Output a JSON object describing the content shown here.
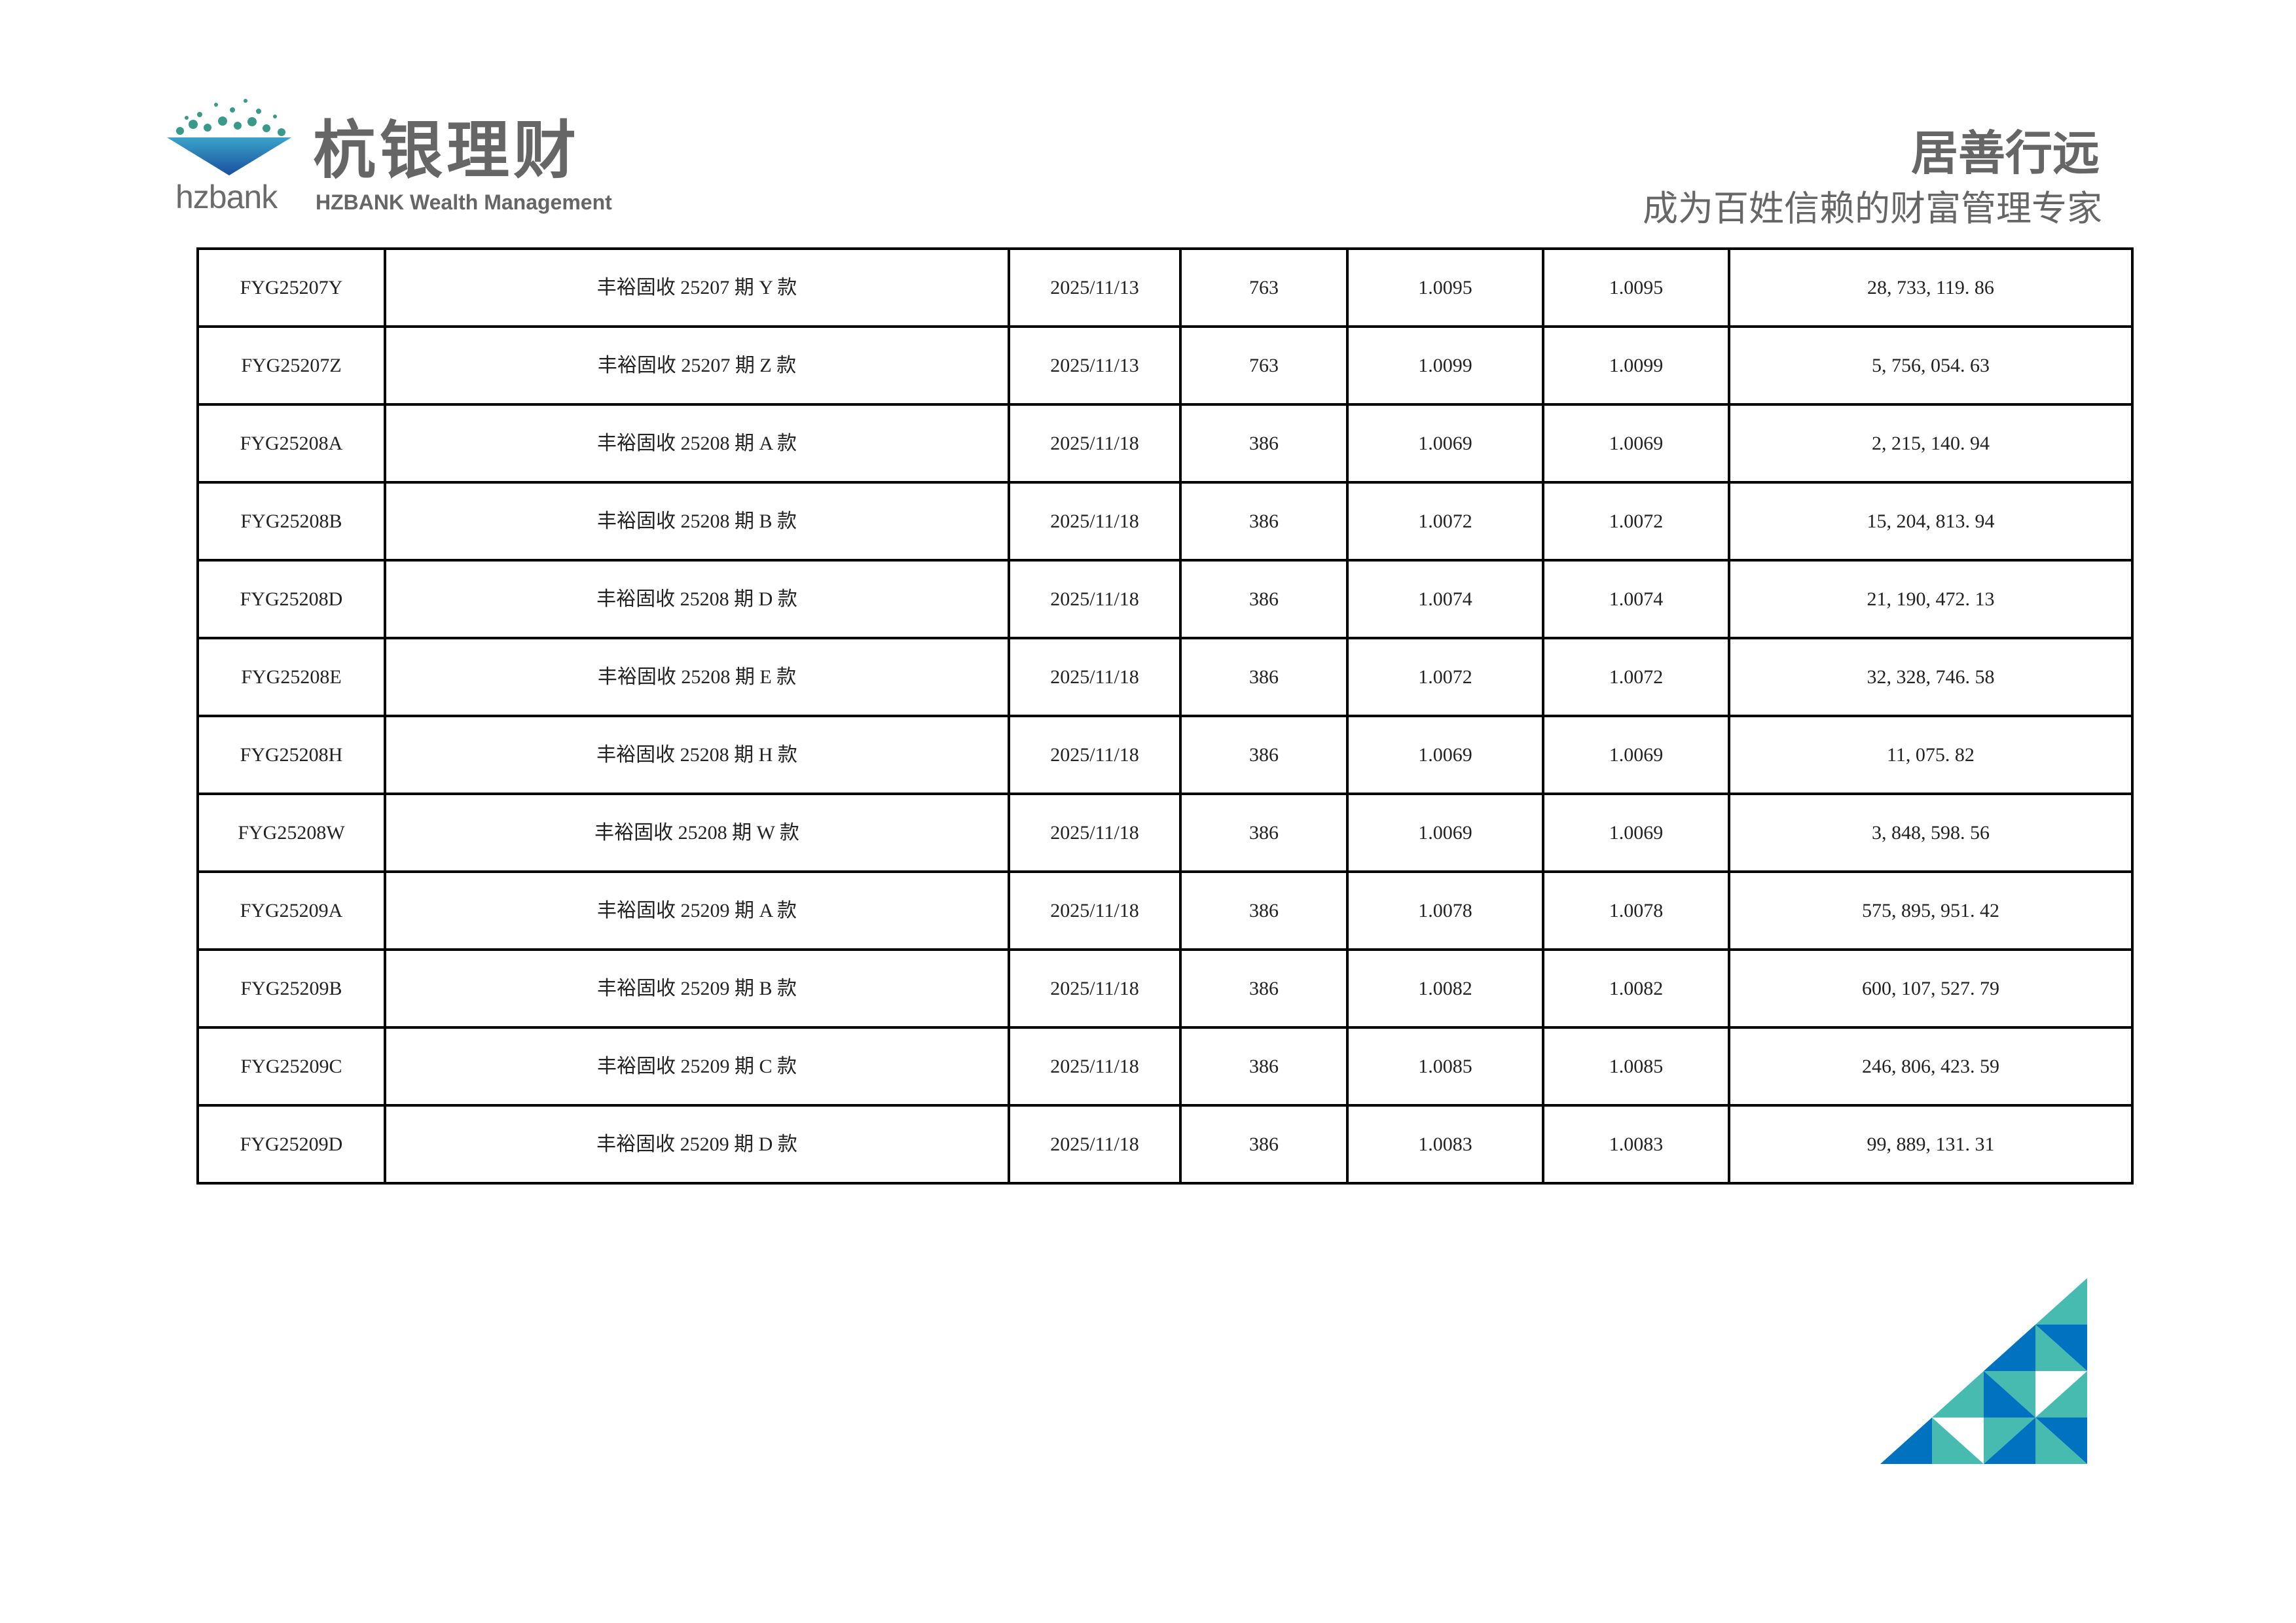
{
  "header": {
    "logo_small_text": "hzbank",
    "brand_cn": "杭银理财",
    "brand_en": "HZBANK Wealth Management",
    "slogan_main": "居善行远",
    "slogan_sub": "成为百姓信赖的财富管理专家"
  },
  "colors": {
    "teal": "#48bbb1",
    "blue": "#0072c0",
    "gray_text": "#666666"
  },
  "table": {
    "rows": [
      [
        "FYG25207Y",
        "丰裕固收 25207 期 Y 款",
        "2025/11/13",
        "763",
        "1.0095",
        "1.0095",
        "28, 733, 119. 86"
      ],
      [
        "FYG25207Z",
        "丰裕固收 25207 期 Z 款",
        "2025/11/13",
        "763",
        "1.0099",
        "1.0099",
        "5, 756, 054. 63"
      ],
      [
        "FYG25208A",
        "丰裕固收 25208 期 A 款",
        "2025/11/18",
        "386",
        "1.0069",
        "1.0069",
        "2, 215, 140. 94"
      ],
      [
        "FYG25208B",
        "丰裕固收 25208 期 B 款",
        "2025/11/18",
        "386",
        "1.0072",
        "1.0072",
        "15, 204, 813. 94"
      ],
      [
        "FYG25208D",
        "丰裕固收 25208 期 D 款",
        "2025/11/18",
        "386",
        "1.0074",
        "1.0074",
        "21, 190, 472. 13"
      ],
      [
        "FYG25208E",
        "丰裕固收 25208 期 E 款",
        "2025/11/18",
        "386",
        "1.0072",
        "1.0072",
        "32, 328, 746. 58"
      ],
      [
        "FYG25208H",
        "丰裕固收 25208 期 H 款",
        "2025/11/18",
        "386",
        "1.0069",
        "1.0069",
        "11, 075. 82"
      ],
      [
        "FYG25208W",
        "丰裕固收 25208 期 W 款",
        "2025/11/18",
        "386",
        "1.0069",
        "1.0069",
        "3, 848, 598. 56"
      ],
      [
        "FYG25209A",
        "丰裕固收 25209 期 A 款",
        "2025/11/18",
        "386",
        "1.0078",
        "1.0078",
        "575, 895, 951. 42"
      ],
      [
        "FYG25209B",
        "丰裕固收 25209 期 B 款",
        "2025/11/18",
        "386",
        "1.0082",
        "1.0082",
        "600, 107, 527. 79"
      ],
      [
        "FYG25209C",
        "丰裕固收 25209 期 C 款",
        "2025/11/18",
        "386",
        "1.0085",
        "1.0085",
        "246, 806, 423. 59"
      ],
      [
        "FYG25209D",
        "丰裕固收 25209 期 D 款",
        "2025/11/18",
        "386",
        "1.0083",
        "1.0083",
        "99, 889, 131. 31"
      ]
    ]
  }
}
